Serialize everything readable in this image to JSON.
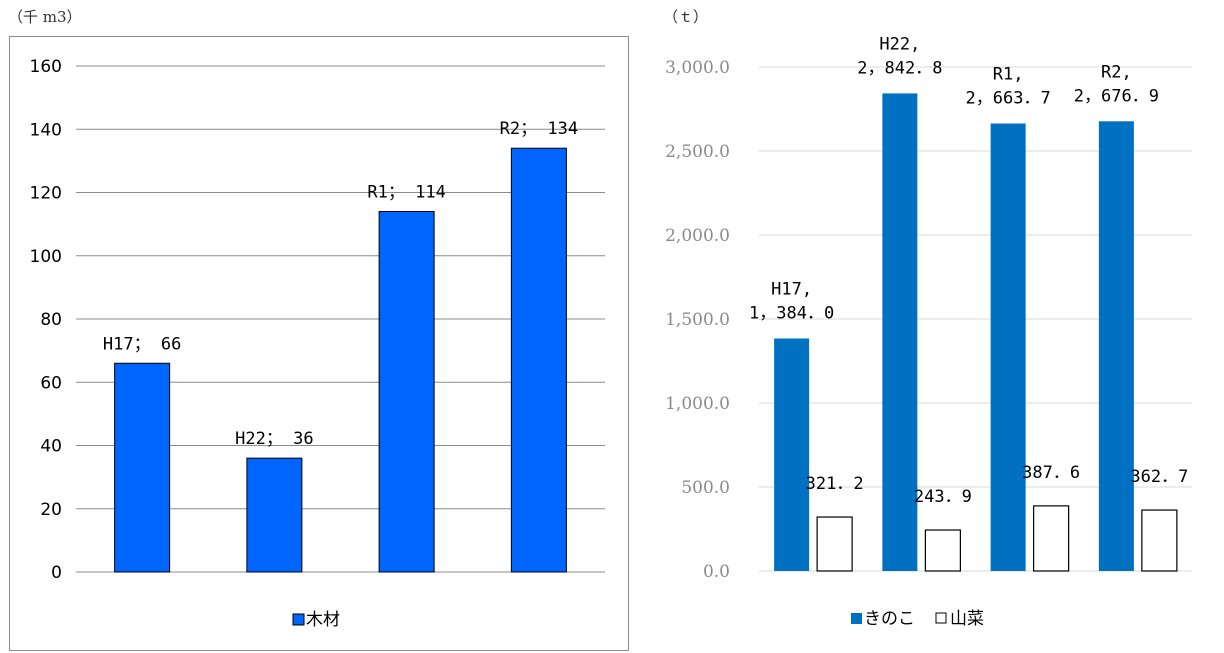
{
  "chart_data": [
    {
      "type": "bar",
      "unit_label": "（千 m3）",
      "categories": [
        "H17",
        "H22",
        "R1",
        "R2"
      ],
      "series": [
        {
          "name": "木材",
          "values": [
            66,
            36,
            114,
            134
          ],
          "color": "#0066ff"
        }
      ],
      "data_labels": [
        "H17； 66",
        "H22； 36",
        "R1； 114",
        "R2； 134"
      ],
      "ylim": [
        0,
        160
      ],
      "yticks": [
        "0",
        "20",
        "40",
        "60",
        "80",
        "100",
        "120",
        "140",
        "160"
      ],
      "grid": true,
      "legend_position": "bottom"
    },
    {
      "type": "bar",
      "unit_label": "（ｔ）",
      "categories": [
        "H17",
        "H22",
        "R1",
        "R2"
      ],
      "series": [
        {
          "name": "きのこ",
          "values": [
            1384.0,
            2842.8,
            2663.7,
            2676.9
          ],
          "color": "#0070c0"
        },
        {
          "name": "山菜",
          "values": [
            321.2,
            243.9,
            387.6,
            362.7
          ],
          "color": "#ffffff"
        }
      ],
      "data_labels": {
        "きのこ": [
          [
            "H17,",
            "1，384．0"
          ],
          [
            "H22,",
            "2，842．8"
          ],
          [
            "R1,",
            "2，663．7"
          ],
          [
            "R2,",
            "2，676．9"
          ]
        ],
        "山菜": [
          "321．2",
          "243．9",
          "387．6",
          "362．7"
        ]
      },
      "ylim": [
        0,
        3000
      ],
      "yticks": [
        "0.0",
        "500.0",
        "1,000.0",
        "1,500.0",
        "2,000.0",
        "2,500.0",
        "3,000.0"
      ],
      "grid": true,
      "legend_position": "bottom"
    }
  ]
}
